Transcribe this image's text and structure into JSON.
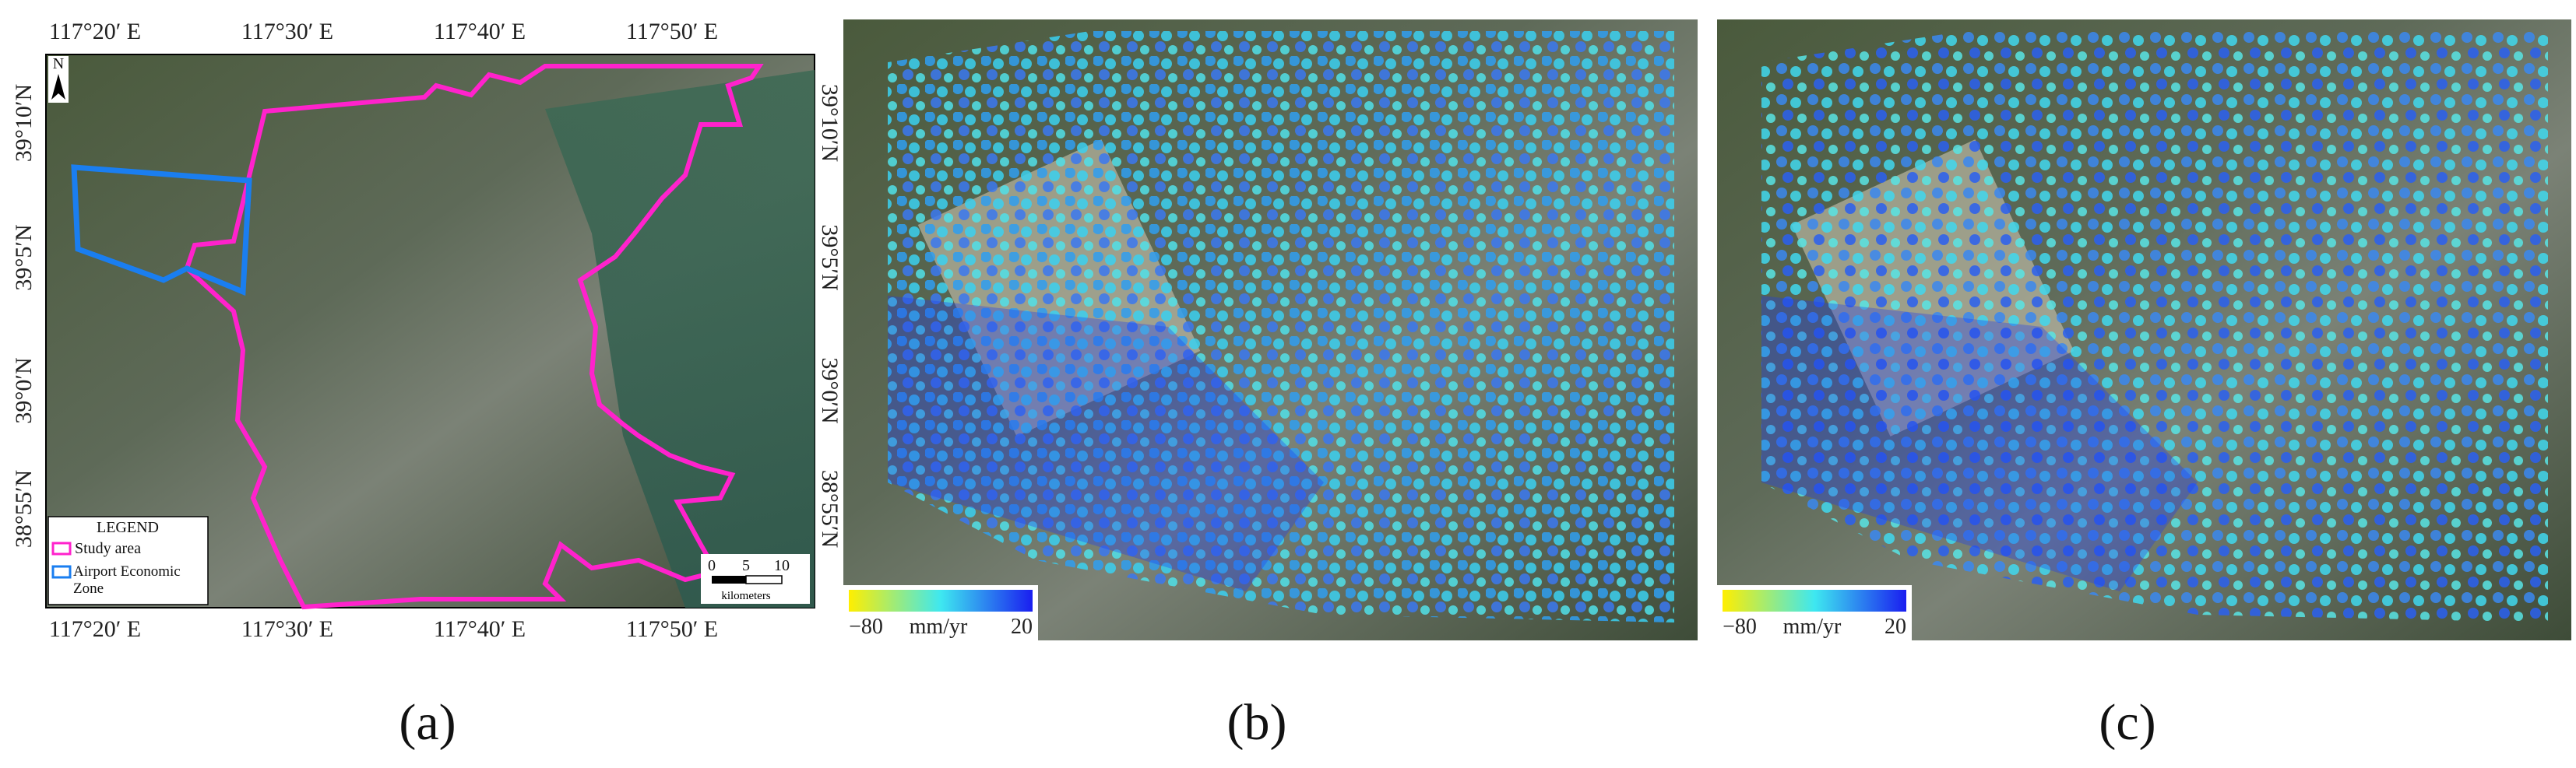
{
  "panel_a": {
    "lon_labels": [
      "117°20′ E",
      "117°30′ E",
      "117°40′ E",
      "117°50′ E"
    ],
    "lat_labels": [
      "39°10′N",
      "39°5′N",
      "39°0′N",
      "38°55′N"
    ],
    "north": "N",
    "legend": {
      "title": "LEGEND",
      "items": [
        "Study area",
        "Airport Economic Zone"
      ]
    },
    "scale_bar": {
      "ticks": [
        "0",
        "5",
        "10"
      ],
      "unit": "kilometers"
    },
    "label": "(a)"
  },
  "panel_b": {
    "colorbar": {
      "min": "−80",
      "unit": "mm/yr",
      "max": "20"
    },
    "label": "(b)"
  },
  "panel_c": {
    "colorbar": {
      "min": "−80",
      "unit": "mm/yr",
      "max": "20"
    },
    "label": "(c)"
  }
}
